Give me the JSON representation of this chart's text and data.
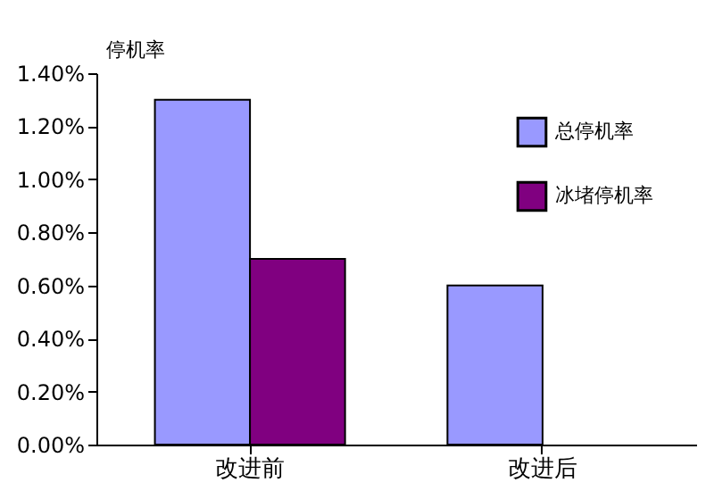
{
  "chart_data": {
    "type": "bar",
    "ylabel": "停机率",
    "categories": [
      "改进前",
      "改进后"
    ],
    "series": [
      {
        "name": "总停机率",
        "color": "#9999ff",
        "values": [
          1.3,
          0.6
        ]
      },
      {
        "name": "冰堵停机率",
        "color": "#800080",
        "values": [
          0.7,
          null
        ]
      }
    ],
    "ylim": [
      0,
      1.4
    ],
    "yticks": [
      {
        "value": 0,
        "label": "0.00%"
      },
      {
        "value": 0.2,
        "label": "0.20%"
      },
      {
        "value": 0.4,
        "label": "0.40%"
      },
      {
        "value": 0.6,
        "label": "0.60%"
      },
      {
        "value": 0.8,
        "label": "0.80%"
      },
      {
        "value": 1.0,
        "label": "1.00%"
      },
      {
        "value": 1.2,
        "label": "1.20%"
      },
      {
        "value": 1.4,
        "label": "1.40%"
      }
    ],
    "grid": false,
    "legend": "top right"
  }
}
